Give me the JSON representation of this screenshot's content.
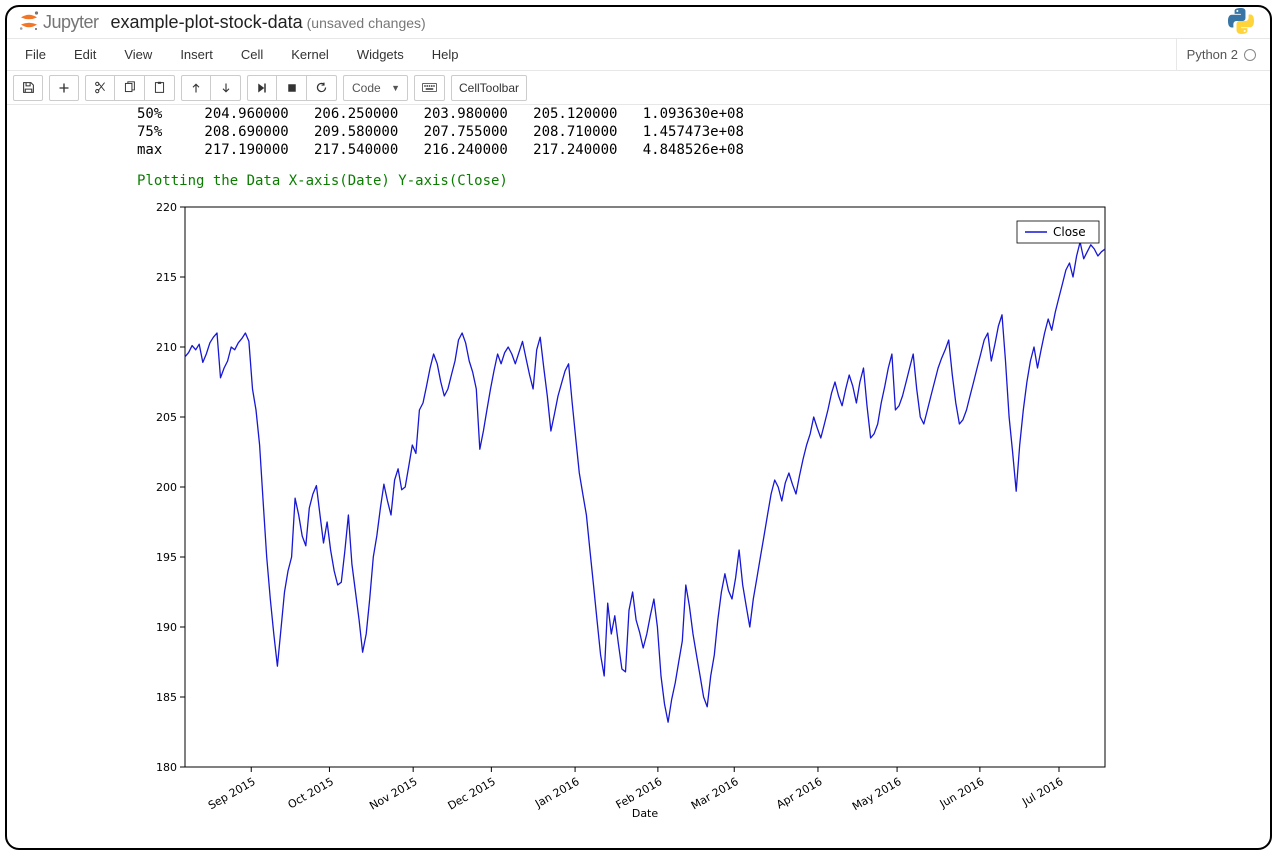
{
  "header": {
    "brand": "Jupyter",
    "notebook_name": "example-plot-stock-data",
    "status": "(unsaved changes)"
  },
  "menubar": {
    "items": [
      "File",
      "Edit",
      "View",
      "Insert",
      "Cell",
      "Kernel",
      "Widgets",
      "Help"
    ],
    "kernel_name": "Python 2"
  },
  "toolbar": {
    "celltype_selected": "Code",
    "celltoolbar_label": "CellToolbar"
  },
  "output": {
    "stats_rows": [
      {
        "label": "50%",
        "cells": [
          "204.960000",
          "206.250000",
          "203.980000",
          "205.120000",
          "1.093630e+08"
        ]
      },
      {
        "label": "75%",
        "cells": [
          "208.690000",
          "209.580000",
          "207.755000",
          "208.710000",
          "1.457473e+08"
        ]
      },
      {
        "label": "max",
        "cells": [
          "217.190000",
          "217.540000",
          "216.240000",
          "217.240000",
          "4.848526e+08"
        ]
      }
    ],
    "plot_title_text": "Plotting the Data X-axis(Date) Y-axis(Close)"
  },
  "chart": {
    "type": "line",
    "legend_label": "Close",
    "legend_position": "upper-right",
    "xlabel": "Date",
    "line_color": "#1717d4",
    "line_width": 1.3,
    "axis_color": "#000000",
    "grid": false,
    "background_color": "#ffffff",
    "tick_fontsize": 11,
    "label_fontsize": 11,
    "ylim": [
      180,
      220
    ],
    "yticks": [
      180,
      185,
      190,
      195,
      200,
      205,
      210,
      215,
      220
    ],
    "x_tick_labels": [
      "Sep 2015",
      "Oct 2015",
      "Nov 2015",
      "Dec 2015",
      "Jan 2016",
      "Feb 2016",
      "Mar 2016",
      "Apr 2016",
      "May 2016",
      "Jun 2016",
      "Jul 2016"
    ],
    "x_tick_x": [
      0.072,
      0.157,
      0.248,
      0.333,
      0.424,
      0.514,
      0.597,
      0.688,
      0.774,
      0.864,
      0.95
    ],
    "x_tick_rotation": 30,
    "values": [
      209.3,
      209.6,
      210.1,
      209.8,
      210.2,
      208.9,
      209.5,
      210.3,
      210.7,
      211.0,
      207.8,
      208.5,
      209.0,
      210.0,
      209.8,
      210.3,
      210.6,
      211.0,
      210.4,
      207.0,
      205.5,
      203.0,
      199.0,
      195.0,
      192.0,
      189.5,
      187.2,
      189.8,
      192.5,
      194.0,
      195.0,
      199.2,
      198.0,
      196.5,
      195.8,
      198.5,
      199.5,
      200.1,
      198.0,
      196.0,
      197.5,
      195.5,
      194.0,
      193.0,
      193.2,
      195.4,
      198.0,
      194.5,
      192.5,
      190.5,
      188.2,
      189.5,
      192.0,
      195.0,
      196.5,
      198.5,
      200.2,
      199.0,
      198.0,
      200.5,
      201.3,
      199.8,
      200.0,
      201.5,
      203.0,
      202.4,
      205.5,
      206.0,
      207.2,
      208.5,
      209.5,
      208.8,
      207.5,
      206.5,
      207.0,
      208.0,
      209.0,
      210.5,
      211.0,
      210.3,
      209.0,
      208.2,
      207.0,
      202.7,
      204.0,
      205.5,
      207.0,
      208.3,
      209.5,
      208.8,
      209.6,
      210.0,
      209.5,
      208.8,
      209.6,
      210.4,
      209.2,
      208.0,
      207.0,
      209.8,
      210.7,
      208.5,
      206.5,
      204.0,
      205.2,
      206.5,
      207.4,
      208.3,
      208.8,
      206.0,
      203.5,
      201.0,
      199.5,
      198.0,
      195.5,
      193.0,
      190.5,
      188.0,
      186.5,
      191.7,
      189.5,
      190.8,
      188.8,
      187.0,
      186.8,
      191.2,
      192.5,
      190.5,
      189.6,
      188.5,
      189.5,
      190.8,
      192.0,
      190.0,
      186.5,
      184.5,
      183.2,
      184.8,
      186.0,
      187.5,
      189.0,
      193.0,
      191.5,
      189.5,
      188.0,
      186.5,
      185.0,
      184.3,
      186.5,
      188.0,
      190.5,
      192.5,
      193.8,
      192.6,
      192.0,
      193.5,
      195.5,
      193.0,
      191.5,
      190.0,
      192.0,
      193.5,
      195.0,
      196.5,
      198.0,
      199.5,
      200.5,
      200.0,
      199.0,
      200.3,
      201.0,
      200.2,
      199.5,
      200.8,
      202.0,
      203.0,
      203.8,
      205.0,
      204.2,
      203.5,
      204.5,
      205.5,
      206.7,
      207.5,
      206.5,
      205.8,
      207.0,
      208.0,
      207.2,
      206.0,
      207.5,
      208.5,
      205.8,
      203.5,
      203.8,
      204.5,
      206.0,
      207.2,
      208.5,
      209.5,
      205.5,
      205.8,
      206.5,
      207.5,
      208.5,
      209.5,
      207.0,
      205.0,
      204.5,
      205.5,
      206.5,
      207.5,
      208.5,
      209.2,
      209.8,
      210.5,
      208.0,
      206.0,
      204.5,
      204.8,
      205.5,
      206.5,
      207.5,
      208.5,
      209.5,
      210.5,
      211.0,
      209.0,
      210.2,
      211.5,
      212.3,
      209.0,
      205.0,
      202.5,
      199.7,
      203.0,
      205.5,
      207.5,
      209.0,
      210.0,
      208.5,
      209.8,
      211.0,
      212.0,
      211.2,
      212.5,
      213.5,
      214.5,
      215.5,
      216.0,
      215.0,
      216.5,
      217.5,
      216.3,
      216.8,
      217.3,
      217.0,
      216.5,
      216.8,
      217.0
    ]
  }
}
